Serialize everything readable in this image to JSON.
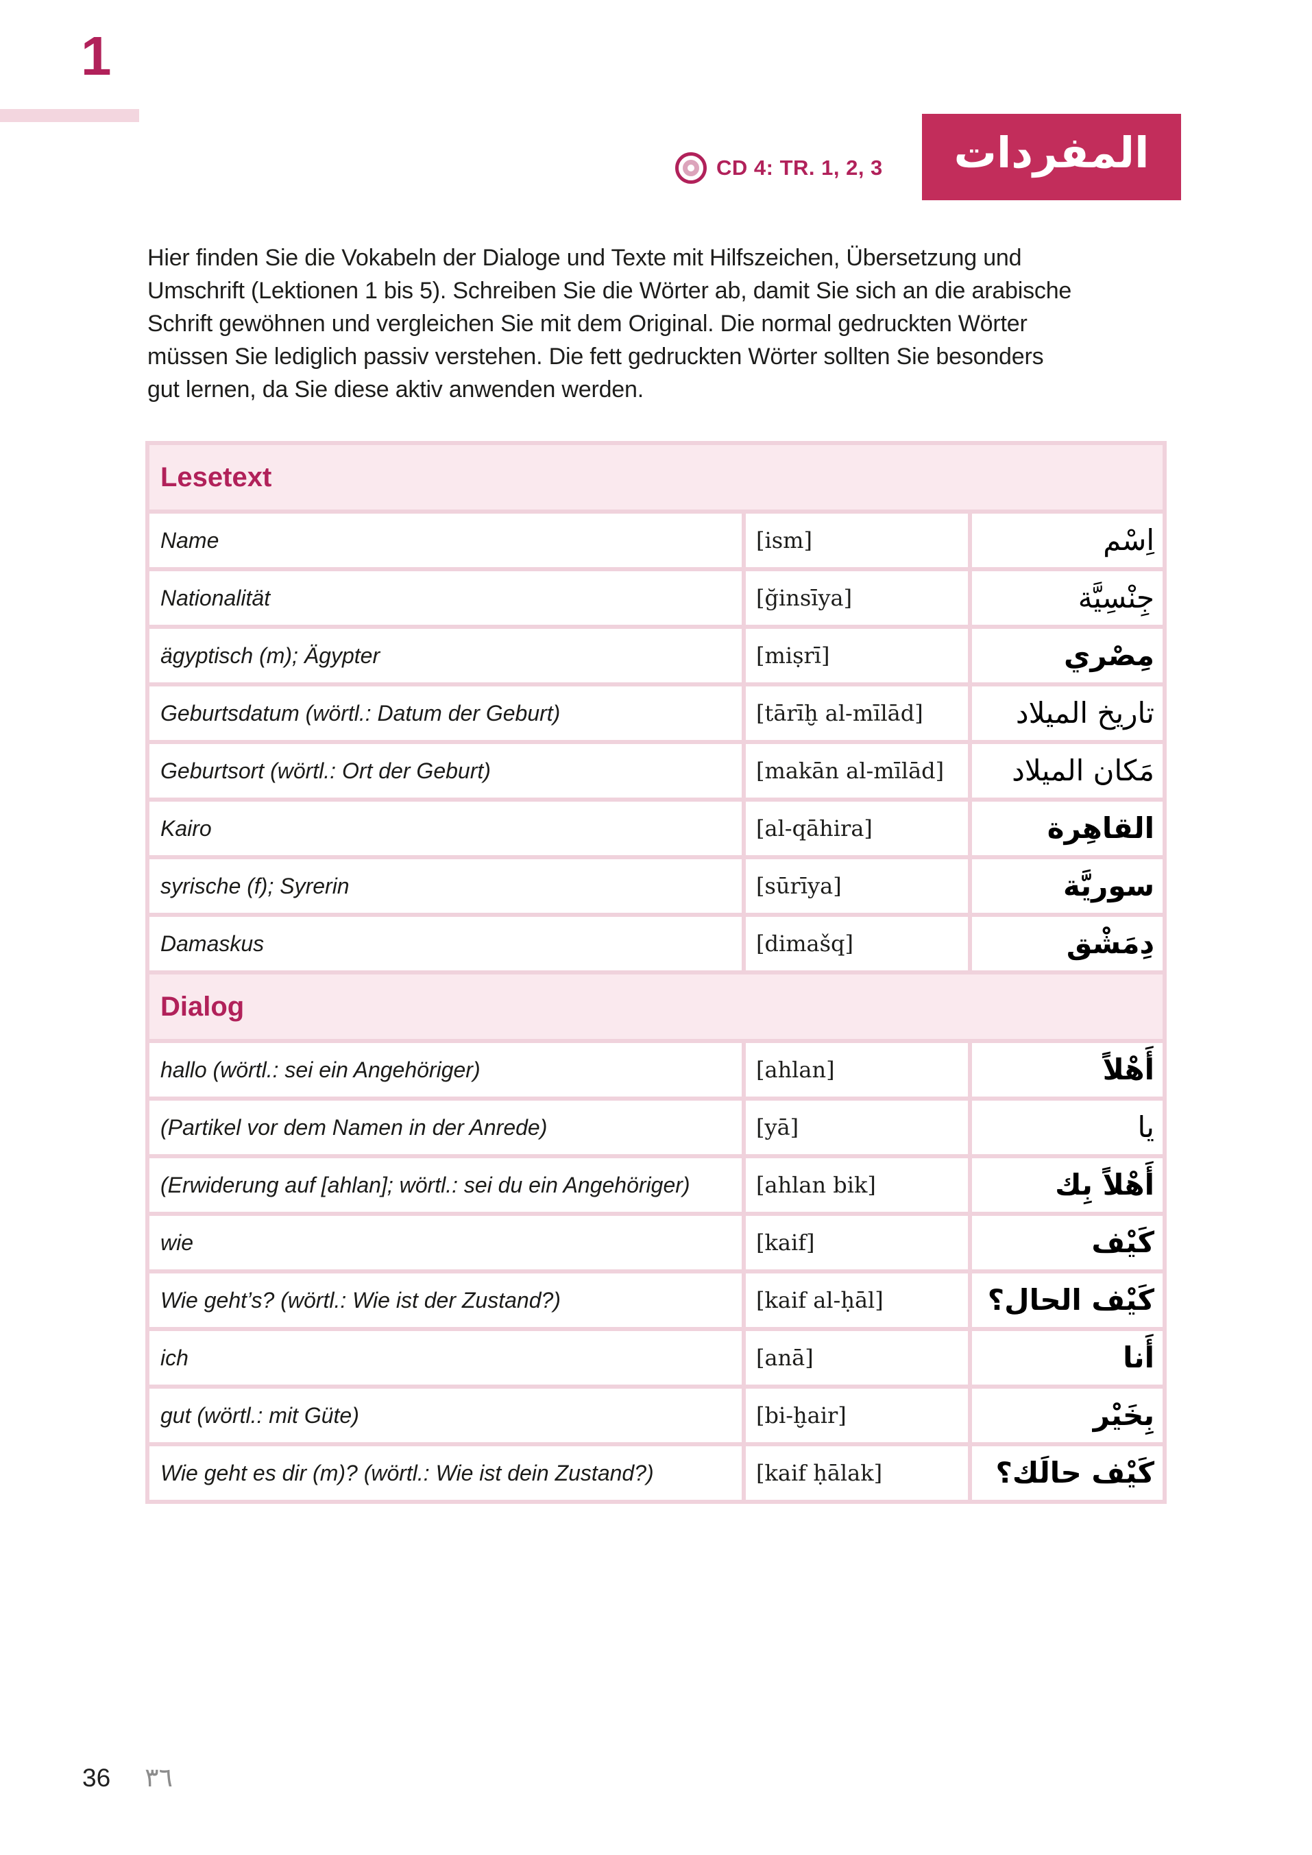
{
  "page": {
    "unit_number": "1",
    "cd_label": "CD 4: TR. 1, 2, 3",
    "arabic_title": "المفردات",
    "intro_lines": [
      "Hier finden Sie die Vokabeln der Dialoge und Texte mit Hilfszeichen, Übersetzung und",
      "Umschrift (Lektionen 1 bis 5). Schreiben Sie die Wörter ab, damit Sie sich an die arabische",
      "Schrift gewöhnen und vergleichen Sie mit dem Original. Die normal gedruckten Wörter",
      "müssen Sie lediglich passiv verstehen. Die fett gedruckten Wörter sollten Sie besonders",
      "gut lernen, da Sie diese aktiv anwenden werden."
    ],
    "page_number_latin": "36",
    "page_number_arabic": "٣٦"
  },
  "colors": {
    "accent": "#b1215a",
    "title_box_bg": "#c22d5b",
    "section_header_bg": "#fae9ee",
    "table_border": "#f0d2dc",
    "deco_bar": "#f3d6df"
  },
  "sections": [
    {
      "title": "Lesetext",
      "rows": [
        {
          "german": "Name",
          "translit": "[ism]",
          "arabic": "اِسْم",
          "bold": false
        },
        {
          "german": "Nationalität",
          "translit": "[ğinsīya]",
          "arabic": "جِنْسِيَّة",
          "bold": false
        },
        {
          "german": "ägyptisch (m); Ägypter",
          "translit": "[miṣrī]",
          "arabic": "مِصْري",
          "bold": true
        },
        {
          "german": "Geburtsdatum (wörtl.: Datum der Geburt)",
          "translit": "[tārīḫ al-mīlād]",
          "arabic": "تاريخ الميلاد",
          "bold": false
        },
        {
          "german": "Geburtsort (wörtl.: Ort der Geburt)",
          "translit": "[makān al-mīlād]",
          "arabic": "مَكان الميلاد",
          "bold": false
        },
        {
          "german": "Kairo",
          "translit": "[al-qāhira]",
          "arabic": "القاهِرة",
          "bold": true
        },
        {
          "german": "syrische (f); Syrerin",
          "translit": "[sūrīya]",
          "arabic": "سوريَّة",
          "bold": true
        },
        {
          "german": "Damaskus",
          "translit": "[dimašq]",
          "arabic": "دِمَشْق",
          "bold": true
        }
      ]
    },
    {
      "title": "Dialog",
      "rows": [
        {
          "german": "hallo (wörtl.: sei ein Angehöriger)",
          "translit": "[ahlan]",
          "arabic": "أَهْلاً",
          "bold": true
        },
        {
          "german": "(Partikel vor dem Namen in der Anrede)",
          "translit": "[yā]",
          "arabic": "يا",
          "bold": false
        },
        {
          "german": "(Erwiderung auf [ahlan]; wörtl.: sei du ein Angehöriger)",
          "translit": "[ahlan bik]",
          "arabic": "أَهْلاً بِك",
          "bold": true
        },
        {
          "german": "wie",
          "translit": "[kaif]",
          "arabic": "كَيْف",
          "bold": true
        },
        {
          "german": "Wie geht’s? (wörtl.: Wie ist der Zustand?)",
          "translit": "[kaif al-ḥāl]",
          "arabic": "كَيْف الحال؟",
          "bold": true
        },
        {
          "german": "ich",
          "translit": "[anā]",
          "arabic": "أَنا",
          "bold": true
        },
        {
          "german": "gut (wörtl.: mit Güte)",
          "translit": "[bi-ḫair]",
          "arabic": "بِخَيْر",
          "bold": true
        },
        {
          "german": "Wie geht es dir (m)? (wörtl.: Wie ist dein Zustand?)",
          "translit": "[kaif ḥālak]",
          "arabic": "كَيْف حالَك؟",
          "bold": true
        }
      ]
    }
  ]
}
